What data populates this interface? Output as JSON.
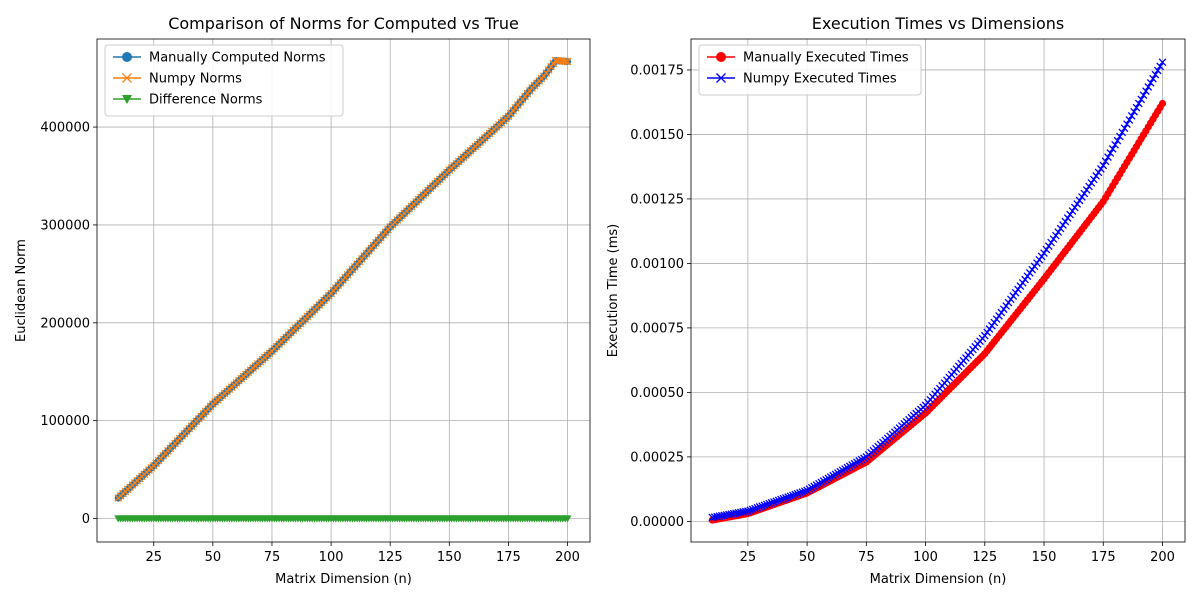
{
  "chart_data": [
    {
      "type": "line",
      "title": "Comparison of Norms for Computed vs True",
      "xlabel": "Matrix Dimension (n)",
      "ylabel": "Euclidean Norm",
      "xlim": [
        1,
        209.5
      ],
      "ylim": [
        -24000,
        490000
      ],
      "xticks": [
        25,
        50,
        75,
        100,
        125,
        150,
        175,
        200
      ],
      "yticks": [
        0,
        100000,
        200000,
        300000,
        400000
      ],
      "ytick_labels": [
        "0",
        "100000",
        "200000",
        "300000",
        "400000"
      ],
      "grid": true,
      "legend_position": "top-left",
      "x": {
        "start": 10,
        "end": 200,
        "step": 1
      },
      "series": [
        {
          "name": "Manually Computed Norms",
          "color": "#1f77b4",
          "marker": "circle",
          "points": [
            [
              10,
              21000
            ],
            [
              25,
              54000
            ],
            [
              50,
              117000
            ],
            [
              75,
              171000
            ],
            [
              100,
              230000
            ],
            [
              125,
              298000
            ],
            [
              150,
              356000
            ],
            [
              175,
              411000
            ],
            [
              185,
              440000
            ],
            [
              190,
              452000
            ],
            [
              195,
              468000
            ],
            [
              200,
              467000
            ]
          ]
        },
        {
          "name": "Numpy Norms",
          "color": "#ff7f0e",
          "marker": "x",
          "points": [
            [
              10,
              21000
            ],
            [
              25,
              54000
            ],
            [
              50,
              117000
            ],
            [
              75,
              171000
            ],
            [
              100,
              230000
            ],
            [
              125,
              298000
            ],
            [
              150,
              356000
            ],
            [
              175,
              411000
            ],
            [
              185,
              440000
            ],
            [
              190,
              452000
            ],
            [
              195,
              468000
            ],
            [
              200,
              467000
            ]
          ]
        },
        {
          "name": "Difference Norms",
          "color": "#2ca02c",
          "marker": "triangle-down",
          "points": [
            [
              10,
              0
            ],
            [
              200,
              0
            ]
          ]
        }
      ]
    },
    {
      "type": "line",
      "title": "Execution Times vs Dimensions",
      "xlabel": "Matrix Dimension (n)",
      "ylabel": "Execution Time (ms)",
      "xlim": [
        1,
        209.5
      ],
      "ylim": [
        -8e-05,
        0.00187
      ],
      "xticks": [
        25,
        50,
        75,
        100,
        125,
        150,
        175,
        200
      ],
      "yticks": [
        0,
        0.00025,
        0.0005,
        0.00075,
        0.001,
        0.00125,
        0.0015,
        0.00175
      ],
      "ytick_labels": [
        "0.00000",
        "0.00025",
        "0.00050",
        "0.00075",
        "0.00100",
        "0.00125",
        "0.00150",
        "0.00175"
      ],
      "grid": true,
      "legend_position": "top-left",
      "x": {
        "start": 10,
        "end": 200,
        "step": 1
      },
      "series": [
        {
          "name": "Manually Executed Times",
          "color": "#ff0000",
          "marker": "circle",
          "points": [
            [
              10,
              5e-06
            ],
            [
              25,
              3e-05
            ],
            [
              50,
              0.00011
            ],
            [
              75,
              0.00023
            ],
            [
              100,
              0.00042
            ],
            [
              125,
              0.00065
            ],
            [
              150,
              0.00094
            ],
            [
              175,
              0.00124
            ],
            [
              200,
              0.00162
            ]
          ]
        },
        {
          "name": "Numpy Executed Times",
          "color": "#0000ff",
          "marker": "x",
          "points": [
            [
              10,
              1.5e-05
            ],
            [
              25,
              4e-05
            ],
            [
              50,
              0.00012
            ],
            [
              75,
              0.00025
            ],
            [
              100,
              0.00045
            ],
            [
              125,
              0.00072
            ],
            [
              150,
              0.00104
            ],
            [
              175,
              0.00138
            ],
            [
              200,
              0.00178
            ]
          ]
        }
      ]
    }
  ]
}
